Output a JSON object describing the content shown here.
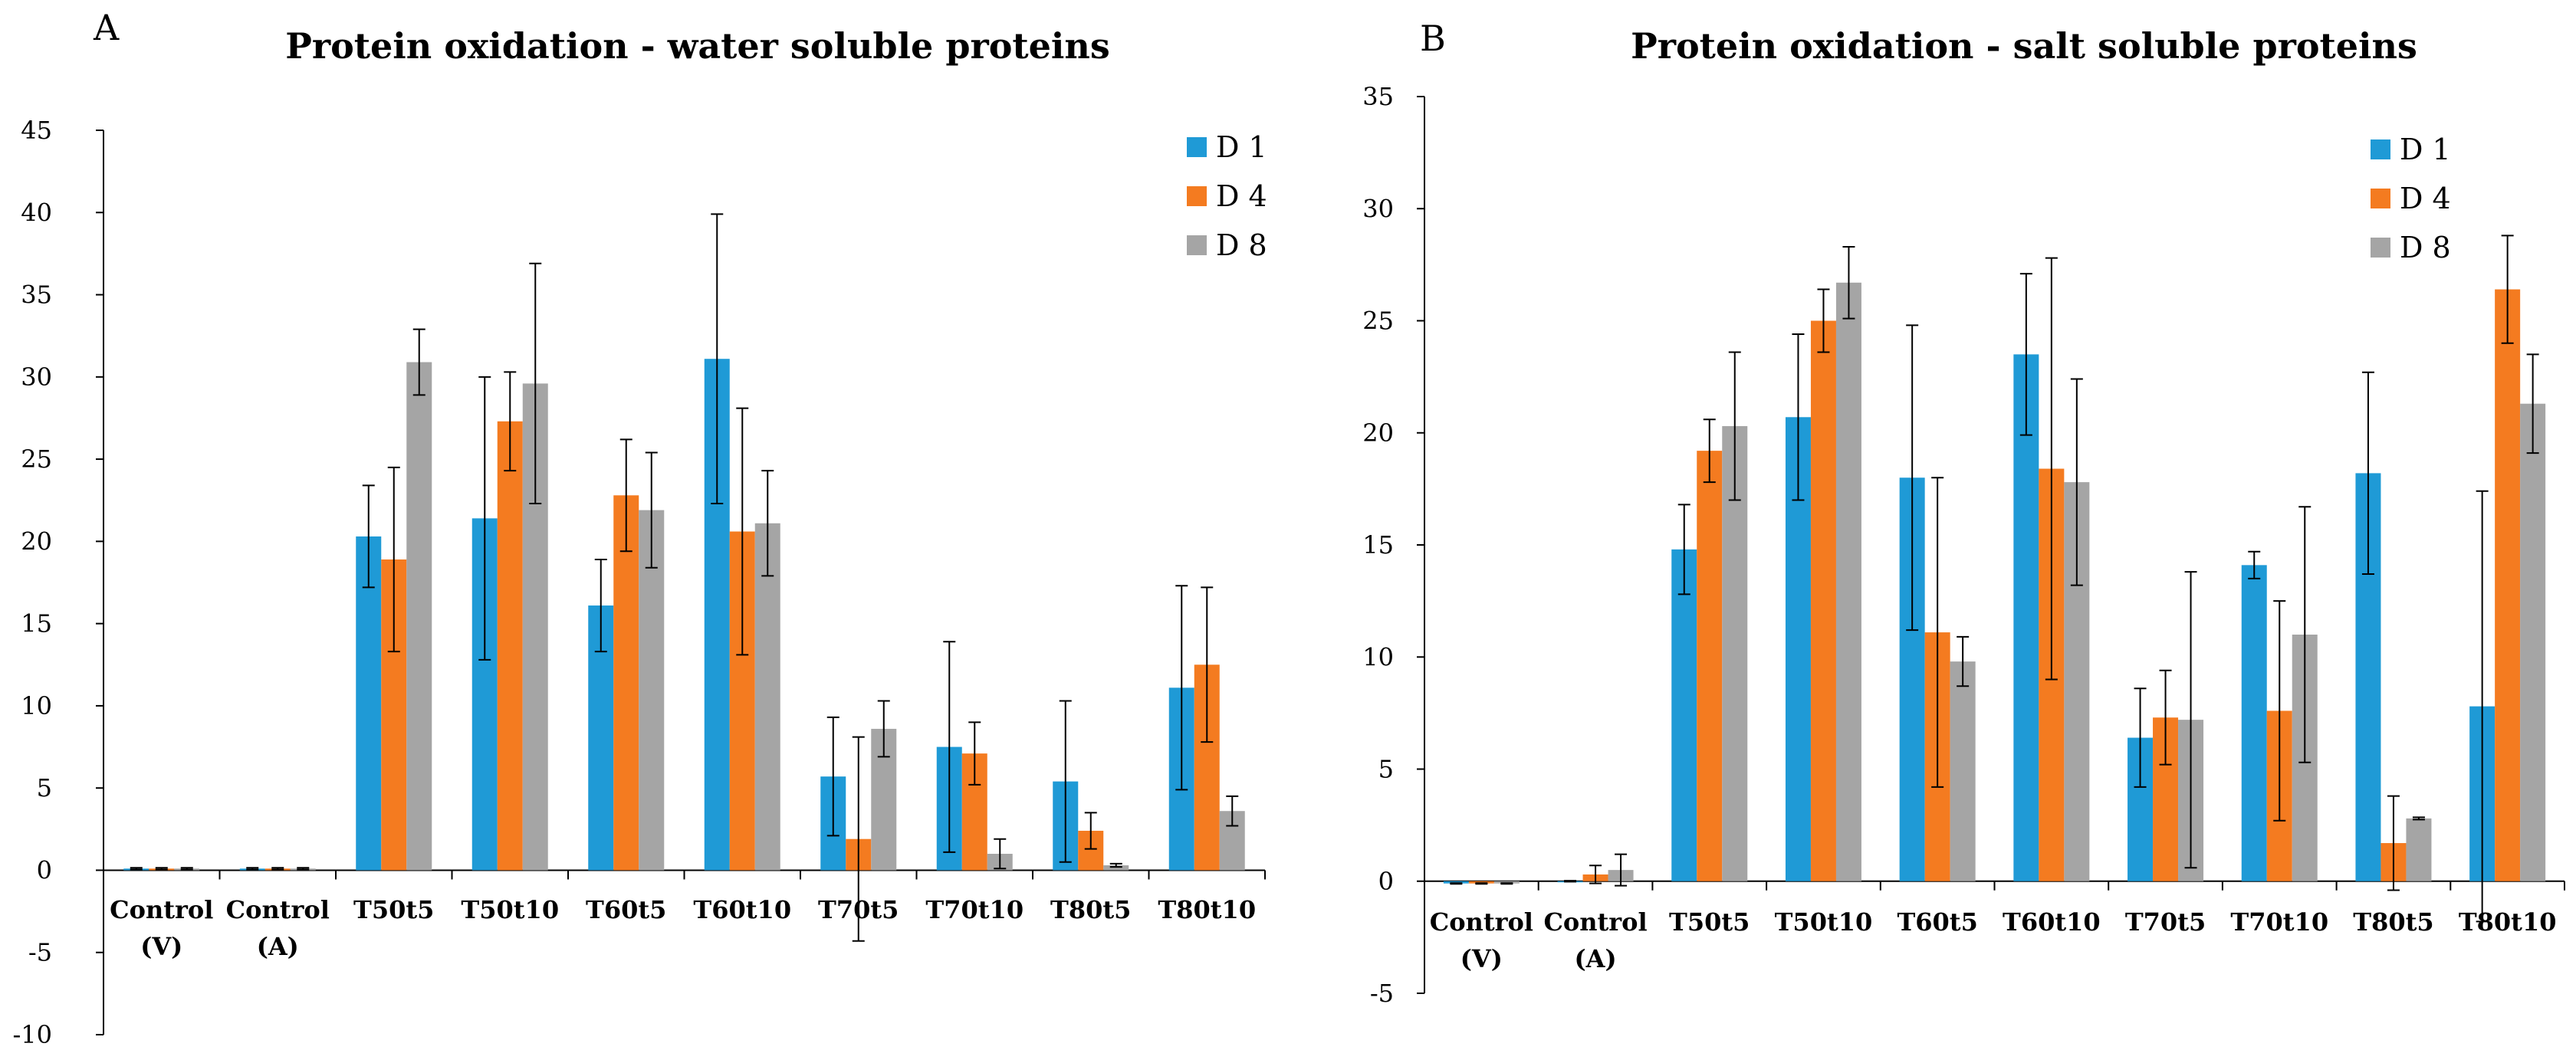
{
  "chart_data": [
    {
      "type": "bar",
      "panel": "A",
      "title": "Protein oxidation - water soluble proteins",
      "xlabel": "",
      "ylabel": "",
      "ylim": [
        -10,
        45
      ],
      "yticks": [
        -10,
        -5,
        0,
        5,
        10,
        15,
        20,
        25,
        30,
        35,
        40,
        45
      ],
      "categories": [
        [
          "Control",
          "(V)"
        ],
        [
          "Control",
          "(A)"
        ],
        [
          "T50t5"
        ],
        [
          "T50t10"
        ],
        [
          "T60t5"
        ],
        [
          "T60t10"
        ],
        [
          "T70t5"
        ],
        [
          "T70t10"
        ],
        [
          "T80t5"
        ],
        [
          "T80t10"
        ]
      ],
      "legend_position": "top-right",
      "series": [
        {
          "name": "D 1",
          "color": "#1f9ad6",
          "values": [
            0.1,
            0.1,
            20.3,
            21.4,
            16.1,
            31.1,
            5.7,
            7.5,
            5.4,
            11.1
          ],
          "errors": [
            0.05,
            0.05,
            3.1,
            8.6,
            2.8,
            8.8,
            3.6,
            6.4,
            4.9,
            6.2
          ]
        },
        {
          "name": "D 4",
          "color": "#f47b20",
          "values": [
            0.1,
            0.1,
            18.9,
            27.3,
            22.8,
            20.6,
            1.9,
            7.1,
            2.4,
            12.5
          ],
          "errors": [
            0.05,
            0.05,
            5.6,
            3.0,
            3.4,
            7.5,
            6.2,
            1.9,
            1.1,
            4.7
          ]
        },
        {
          "name": "D 8",
          "color": "#a5a5a5",
          "values": [
            0.1,
            0.1,
            30.9,
            29.6,
            21.9,
            21.1,
            8.6,
            1.0,
            0.3,
            3.6
          ],
          "errors": [
            0.05,
            0.05,
            2.0,
            7.3,
            3.5,
            3.2,
            1.7,
            0.9,
            0.1,
            0.9
          ]
        }
      ]
    },
    {
      "type": "bar",
      "panel": "B",
      "title": "Protein oxidation - salt soluble proteins",
      "xlabel": "",
      "ylabel": "",
      "ylim": [
        -5,
        35
      ],
      "yticks": [
        -5,
        0,
        5,
        10,
        15,
        20,
        25,
        30,
        35
      ],
      "categories": [
        [
          "Control",
          "(V)"
        ],
        [
          "Control",
          "(A)"
        ],
        [
          "T50t5"
        ],
        [
          "T50t10"
        ],
        [
          "T60t5"
        ],
        [
          "T60t10"
        ],
        [
          "T70t5"
        ],
        [
          "T70t10"
        ],
        [
          "T80t5"
        ],
        [
          "T80t10"
        ]
      ],
      "legend_position": "top-right",
      "series": [
        {
          "name": "D 1",
          "color": "#1f9ad6",
          "values": [
            -0.1,
            0.0,
            14.8,
            20.7,
            18.0,
            23.5,
            6.4,
            14.1,
            18.2,
            7.8
          ],
          "errors": [
            0.02,
            0.02,
            2.0,
            3.7,
            6.8,
            3.6,
            2.2,
            0.6,
            4.5,
            9.6
          ]
        },
        {
          "name": "D 4",
          "color": "#f47b20",
          "values": [
            -0.1,
            0.3,
            19.2,
            25.0,
            11.1,
            18.4,
            7.3,
            7.6,
            1.7,
            26.4
          ],
          "errors": [
            0.02,
            0.4,
            1.4,
            1.4,
            6.9,
            9.4,
            2.1,
            4.9,
            2.1,
            2.4
          ]
        },
        {
          "name": "D 8",
          "color": "#a5a5a5",
          "values": [
            -0.1,
            0.5,
            20.3,
            26.7,
            9.8,
            17.8,
            7.2,
            11.0,
            2.8,
            21.3
          ],
          "errors": [
            0.02,
            0.7,
            3.3,
            1.6,
            1.1,
            4.6,
            6.6,
            5.7,
            0.05,
            2.2
          ]
        }
      ]
    }
  ]
}
